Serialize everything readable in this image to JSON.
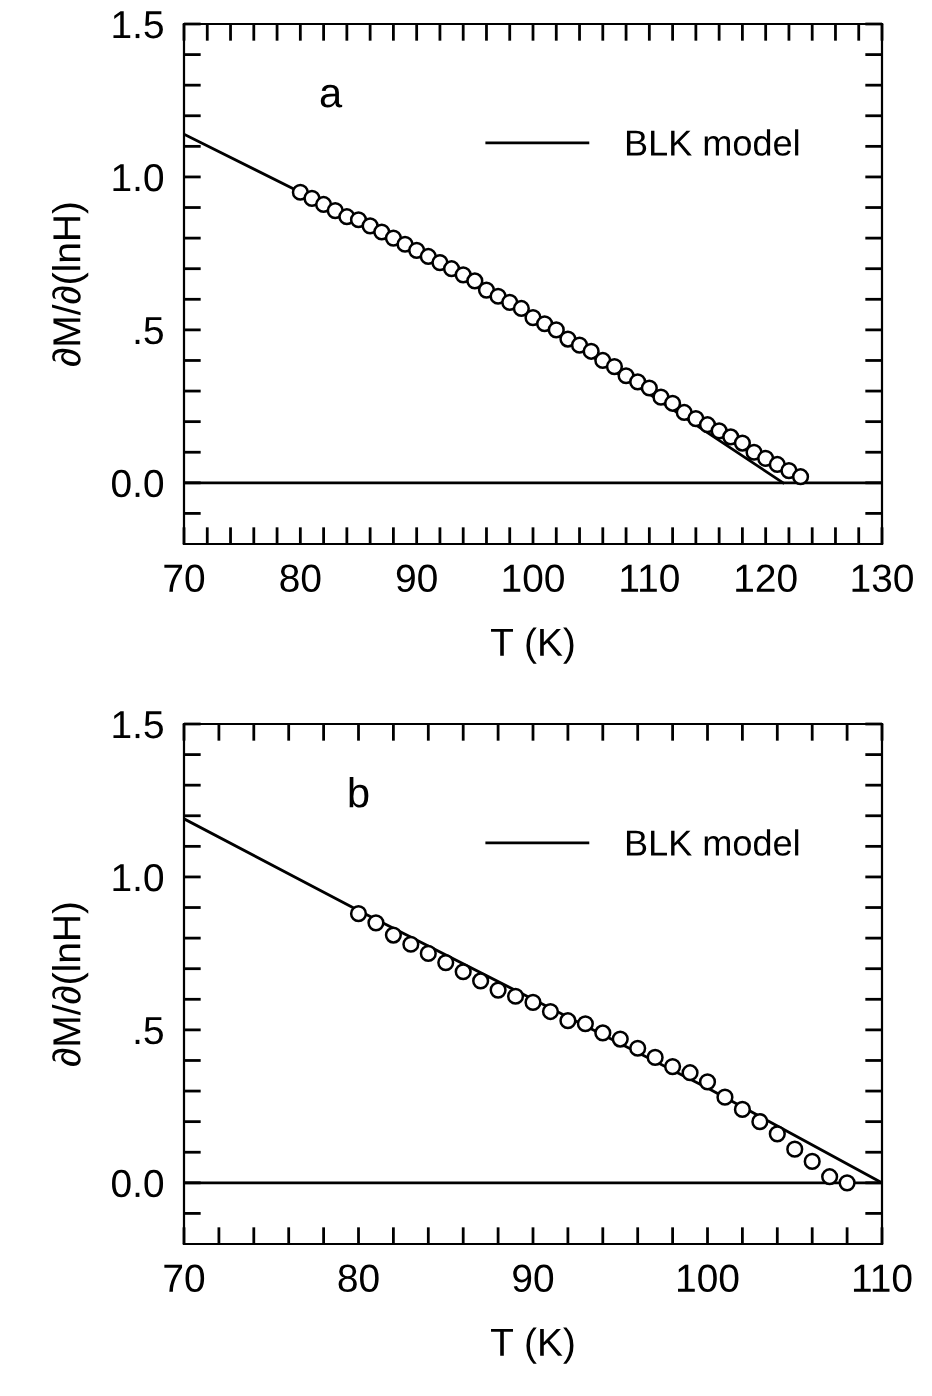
{
  "chart_data": [
    {
      "type": "line",
      "xlabel": "T (K)",
      "ylabel": "∂M/∂(lnH)",
      "annotations": [
        "a"
      ],
      "legend": "top right",
      "xlim": [
        70,
        130
      ],
      "xticks": [
        70,
        80,
        90,
        100,
        110,
        120,
        130,
        {
          "value": 72,
          "label": null
        },
        {
          "value": 74,
          "label": null
        },
        {
          "value": 76,
          "label": null
        },
        {
          "value": 78,
          "label": null
        },
        {
          "value": 82,
          "label": null
        },
        {
          "value": 84,
          "label": null
        },
        {
          "value": 86,
          "label": null
        },
        {
          "value": 88,
          "label": null
        },
        {
          "value": 92,
          "label": null
        },
        {
          "value": 94,
          "label": null
        },
        {
          "value": 96,
          "label": null
        },
        {
          "value": 98,
          "label": null
        },
        {
          "value": 102,
          "label": null
        },
        {
          "value": 104,
          "label": null
        },
        {
          "value": 106,
          "label": null
        },
        {
          "value": 108,
          "label": null
        },
        {
          "value": 112,
          "label": null
        },
        {
          "value": 114,
          "label": null
        },
        {
          "value": 116,
          "label": null
        },
        {
          "value": 118,
          "label": null
        },
        {
          "value": 122,
          "label": null
        },
        {
          "value": 124,
          "label": null
        },
        {
          "value": 126,
          "label": null
        },
        {
          "value": 128,
          "label": null
        }
      ],
      "ylim": [
        -0.2,
        1.5
      ],
      "yticks": [
        {
          "value": 0,
          "label": "0.0"
        },
        {
          "value": 0.5,
          "label": ".5"
        },
        {
          "value": 1,
          "label": "1.0"
        },
        1.5,
        {
          "value": -0.1,
          "label": null
        },
        {
          "value": 0.1,
          "label": null
        },
        {
          "value": 0.2,
          "label": null
        },
        {
          "value": 0.3,
          "label": null
        },
        {
          "value": 0.4,
          "label": null
        },
        {
          "value": 0.6,
          "label": null
        },
        {
          "value": 0.7,
          "label": null
        },
        {
          "value": 0.8,
          "label": null
        },
        {
          "value": 0.9,
          "label": null
        },
        {
          "value": 1.1,
          "label": null
        },
        {
          "value": 1.2,
          "label": null
        },
        {
          "value": 1.3,
          "label": null
        },
        {
          "value": 1.4,
          "label": null
        }
      ],
      "ref_lines": [
        {
          "axis": "y",
          "value": 0,
          "color": "#000000"
        }
      ],
      "series": [
        {
          "name": "BLK model",
          "color": "#000000",
          "marker": "none",
          "x": [
            70,
            80,
            90,
            100,
            110,
            121.5
          ],
          "values": [
            1.14,
            0.95,
            0.75,
            0.54,
            0.29,
            0
          ]
        },
        {
          "type": "scatter",
          "color": "#000000",
          "marker": "circle",
          "x": [
            80,
            81,
            82,
            83,
            84,
            85,
            86,
            87,
            88,
            89,
            90,
            91,
            92,
            93,
            94,
            95,
            96,
            97,
            98,
            99,
            100,
            101,
            102,
            103,
            104,
            105,
            106,
            107,
            108,
            109,
            110,
            111,
            112,
            113,
            114,
            115,
            116,
            117,
            118,
            119,
            120,
            121,
            122,
            123
          ],
          "values": [
            0.95,
            0.93,
            0.91,
            0.89,
            0.87,
            0.86,
            0.84,
            0.82,
            0.8,
            0.78,
            0.76,
            0.74,
            0.72,
            0.7,
            0.68,
            0.66,
            0.63,
            0.61,
            0.59,
            0.57,
            0.54,
            0.52,
            0.5,
            0.47,
            0.45,
            0.43,
            0.4,
            0.38,
            0.35,
            0.33,
            0.31,
            0.28,
            0.26,
            0.23,
            0.21,
            0.19,
            0.17,
            0.15,
            0.13,
            0.1,
            0.08,
            0.06,
            0.04,
            0.02
          ]
        }
      ]
    },
    {
      "type": "line",
      "xlabel": "T (K)",
      "ylabel": "∂M/∂(lnH)",
      "annotations": [
        "b"
      ],
      "legend": "top right",
      "xlim": [
        70,
        110
      ],
      "xticks": [
        70,
        80,
        90,
        100,
        110,
        {
          "value": 72,
          "label": null
        },
        {
          "value": 74,
          "label": null
        },
        {
          "value": 76,
          "label": null
        },
        {
          "value": 78,
          "label": null
        },
        {
          "value": 82,
          "label": null
        },
        {
          "value": 84,
          "label": null
        },
        {
          "value": 86,
          "label": null
        },
        {
          "value": 88,
          "label": null
        },
        {
          "value": 92,
          "label": null
        },
        {
          "value": 94,
          "label": null
        },
        {
          "value": 96,
          "label": null
        },
        {
          "value": 98,
          "label": null
        },
        {
          "value": 102,
          "label": null
        },
        {
          "value": 104,
          "label": null
        },
        {
          "value": 106,
          "label": null
        },
        {
          "value": 108,
          "label": null
        }
      ],
      "ylim": [
        -0.2,
        1.5
      ],
      "yticks": [
        {
          "value": 0,
          "label": "0.0"
        },
        {
          "value": 0.5,
          "label": ".5"
        },
        {
          "value": 1,
          "label": "1.0"
        },
        1.5,
        {
          "value": -0.1,
          "label": null
        },
        {
          "value": 0.1,
          "label": null
        },
        {
          "value": 0.2,
          "label": null
        },
        {
          "value": 0.3,
          "label": null
        },
        {
          "value": 0.4,
          "label": null
        },
        {
          "value": 0.6,
          "label": null
        },
        {
          "value": 0.7,
          "label": null
        },
        {
          "value": 0.8,
          "label": null
        },
        {
          "value": 0.9,
          "label": null
        },
        {
          "value": 1.1,
          "label": null
        },
        {
          "value": 1.2,
          "label": null
        },
        {
          "value": 1.3,
          "label": null
        },
        {
          "value": 1.4,
          "label": null
        }
      ],
      "ref_lines": [
        {
          "axis": "y",
          "value": 0,
          "color": "#000000"
        }
      ],
      "series": [
        {
          "name": "BLK model",
          "color": "#000000",
          "marker": "none",
          "x": [
            70,
            80,
            90,
            100,
            110
          ],
          "values": [
            1.19,
            0.89,
            0.6,
            0.31,
            0
          ]
        },
        {
          "type": "scatter",
          "color": "#000000",
          "marker": "circle",
          "x": [
            80,
            81,
            82,
            83,
            84,
            85,
            86,
            87,
            88,
            89,
            90,
            91,
            92,
            93,
            94,
            95,
            96,
            97,
            98,
            99,
            100,
            101,
            102,
            103,
            104,
            105,
            106,
            107,
            108
          ],
          "values": [
            0.88,
            0.85,
            0.81,
            0.78,
            0.75,
            0.72,
            0.69,
            0.66,
            0.63,
            0.61,
            0.59,
            0.56,
            0.53,
            0.52,
            0.49,
            0.47,
            0.44,
            0.41,
            0.38,
            0.36,
            0.33,
            0.28,
            0.24,
            0.2,
            0.16,
            0.11,
            0.07,
            0.02,
            0.0
          ]
        }
      ]
    }
  ]
}
